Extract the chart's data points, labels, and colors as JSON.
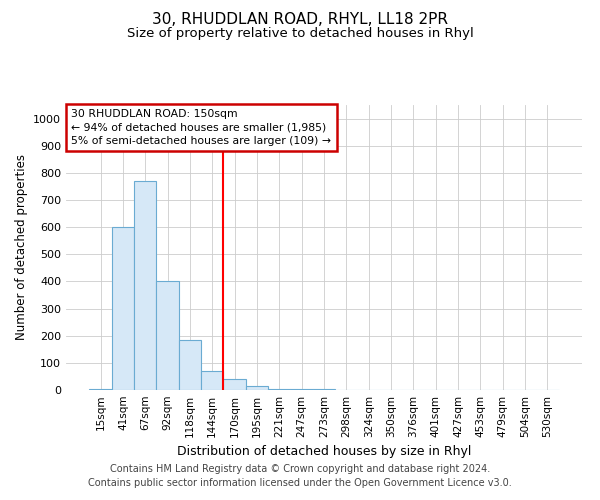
{
  "title": "30, RHUDDLAN ROAD, RHYL, LL18 2PR",
  "subtitle": "Size of property relative to detached houses in Rhyl",
  "xlabel": "Distribution of detached houses by size in Rhyl",
  "ylabel": "Number of detached properties",
  "bar_labels": [
    "15sqm",
    "41sqm",
    "67sqm",
    "92sqm",
    "118sqm",
    "144sqm",
    "170sqm",
    "195sqm",
    "221sqm",
    "247sqm",
    "273sqm",
    "298sqm",
    "324sqm",
    "350sqm",
    "376sqm",
    "401sqm",
    "427sqm",
    "453sqm",
    "479sqm",
    "504sqm",
    "530sqm"
  ],
  "bar_values": [
    2,
    600,
    770,
    400,
    185,
    70,
    40,
    15,
    5,
    5,
    5,
    0,
    0,
    0,
    0,
    0,
    0,
    0,
    0,
    0,
    0
  ],
  "bar_color": "#d6e8f7",
  "bar_edge_color": "#6aabd2",
  "red_line_index": 5,
  "annotation_text": "30 RHUDDLAN ROAD: 150sqm\n← 94% of detached houses are smaller (1,985)\n5% of semi-detached houses are larger (109) →",
  "annotation_box_color": "#ffffff",
  "annotation_border_color": "#cc0000",
  "ylim": [
    0,
    1050
  ],
  "yticks": [
    0,
    100,
    200,
    300,
    400,
    500,
    600,
    700,
    800,
    900,
    1000
  ],
  "grid_color": "#cccccc",
  "footer": "Contains HM Land Registry data © Crown copyright and database right 2024.\nContains public sector information licensed under the Open Government Licence v3.0.",
  "title_fontsize": 11,
  "subtitle_fontsize": 9.5,
  "xlabel_fontsize": 9,
  "ylabel_fontsize": 8.5,
  "footer_fontsize": 7,
  "tick_fontsize": 7.5,
  "ytick_fontsize": 8,
  "background_color": "#ffffff"
}
